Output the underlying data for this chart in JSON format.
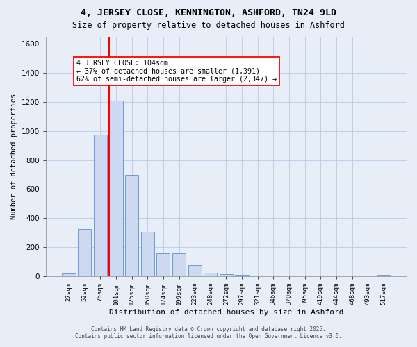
{
  "title1": "4, JERSEY CLOSE, KENNINGTON, ASHFORD, TN24 9LD",
  "title2": "Size of property relative to detached houses in Ashford",
  "xlabel": "Distribution of detached houses by size in Ashford",
  "ylabel": "Number of detached properties",
  "categories": [
    "27sqm",
    "52sqm",
    "76sqm",
    "101sqm",
    "125sqm",
    "150sqm",
    "174sqm",
    "199sqm",
    "223sqm",
    "248sqm",
    "272sqm",
    "297sqm",
    "321sqm",
    "346sqm",
    "370sqm",
    "395sqm",
    "419sqm",
    "444sqm",
    "468sqm",
    "493sqm",
    "517sqm"
  ],
  "values": [
    20,
    325,
    975,
    1210,
    700,
    305,
    160,
    160,
    75,
    25,
    15,
    10,
    5,
    0,
    0,
    5,
    0,
    0,
    0,
    0,
    10
  ],
  "bar_color": "#ccd9f0",
  "bar_edge_color": "#6090cc",
  "vline_x_index": 3,
  "vline_color": "red",
  "annotation_text": "4 JERSEY CLOSE: 104sqm\n← 37% of detached houses are smaller (1,391)\n62% of semi-detached houses are larger (2,347) →",
  "annotation_box_color": "white",
  "annotation_box_edge": "red",
  "ylim": [
    0,
    1650
  ],
  "yticks": [
    0,
    200,
    400,
    600,
    800,
    1000,
    1200,
    1400,
    1600
  ],
  "grid_color": "#b8c8e8",
  "bg_color": "#e8eef8",
  "footer1": "Contains HM Land Registry data © Crown copyright and database right 2025.",
  "footer2": "Contains public sector information licensed under the Open Government Licence v3.0."
}
